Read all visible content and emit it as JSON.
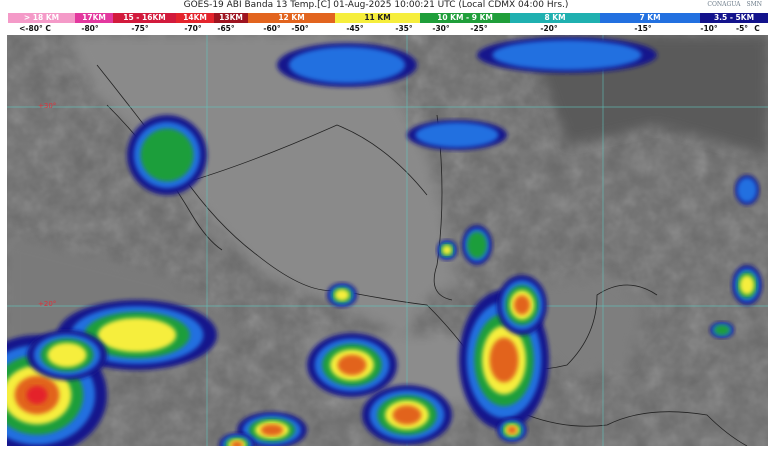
{
  "header": {
    "title": "GOES-19 ABI Banda 13 Temp.[C] 01-Aug-2025 10:00:21 UTC (Local CDMX  04:00 Hrs.)"
  },
  "logos": {
    "conagua": "CONAGUA",
    "smn": "SMN"
  },
  "legend": {
    "bands": [
      {
        "label": "> 18 KM",
        "color": "#f49ac8"
      },
      {
        "label": "17KM",
        "color": "#e3389e"
      },
      {
        "label": "15 - 16KM",
        "color": "#d21a3c"
      },
      {
        "label": "14KM",
        "color": "#e4242c"
      },
      {
        "label": "13KM",
        "color": "#9e1420"
      },
      {
        "label": "12 KM",
        "color": "#e2641e"
      },
      {
        "label": "11 KM",
        "color": "#f6ee3c"
      },
      {
        "label": "10 KM - 9 KM",
        "color": "#1f9e3a"
      },
      {
        "label": "8 KM",
        "color": "#1fb0b0"
      },
      {
        "label": "7 KM",
        "color": "#2270e0"
      },
      {
        "label": "3.5 - 5KM",
        "color": "#13138c"
      }
    ],
    "temps": [
      "<-80° C",
      "-80°",
      "-75°",
      "-70°",
      "-65°",
      "-60°",
      "-50°",
      "-45°",
      "-35°",
      "-30°",
      "-25°",
      "-20°",
      "-15°",
      "-10°",
      "-5°",
      "C"
    ]
  },
  "map": {
    "grid_labels": [
      "+30°",
      "+20°"
    ],
    "grid_color": "#5fc8c0"
  }
}
